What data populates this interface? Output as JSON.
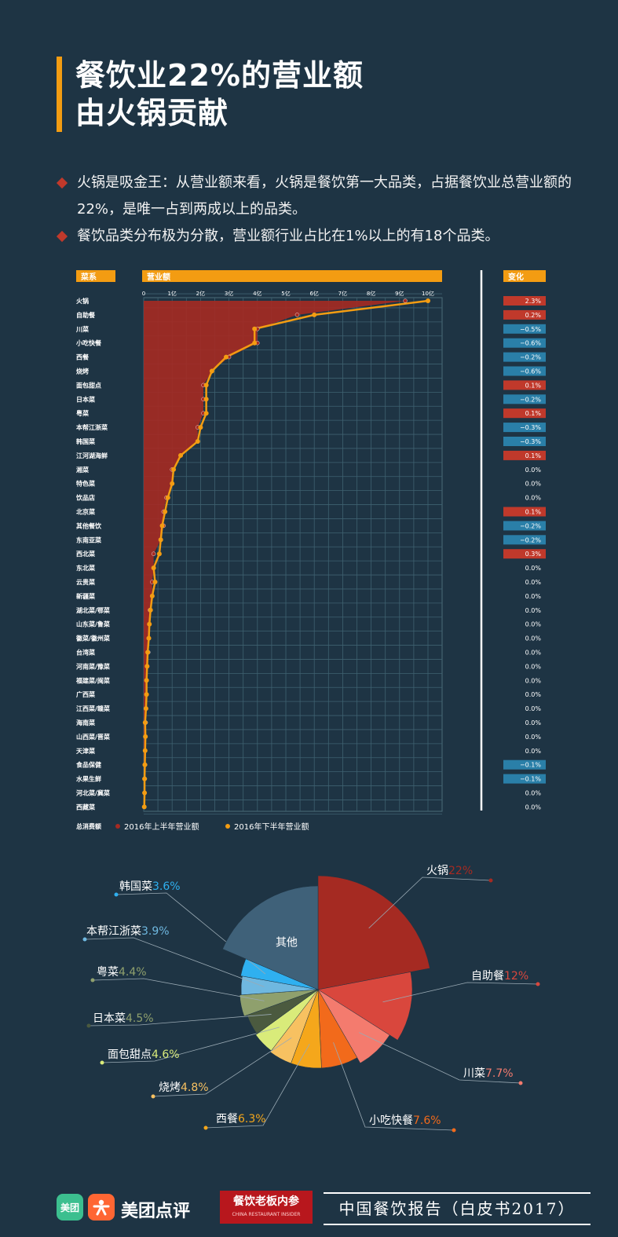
{
  "title": {
    "line1": "餐饮业22%的营业额",
    "line2": "由火锅贡献"
  },
  "bullets": [
    "火锅是吸金王：从营业额来看，火锅是餐饮第一大品类，占据餐饮业总营业额的22%，是唯一占到两成以上的品类。",
    "餐饮品类分布极为分散，营业额行业占比在1%以上的有18个品类。"
  ],
  "colors": {
    "accent": "#f39c12",
    "h1": "#a52a22",
    "h2": "#f39c12",
    "neg": "#2a7fa8",
    "pos": "#c0392b",
    "bg": "#1e3444"
  },
  "chart_data": [
    {
      "type": "line",
      "header_category": "菜系",
      "header_revenue": "营业额",
      "header_change": "变化",
      "x_ticks": [
        "0",
        "1亿",
        "2亿",
        "3亿",
        "4亿",
        "5亿",
        "6亿",
        "7亿",
        "8亿",
        "9亿",
        "10亿"
      ],
      "xlim": [
        0,
        10
      ],
      "legend_title": "总消费额",
      "legend": [
        "2016年上半年营业额",
        "2016年下半年营业额"
      ],
      "categories": [
        "火锅",
        "自助餐",
        "川菜",
        "小吃快餐",
        "西餐",
        "烧烤",
        "面包甜点",
        "日本菜",
        "粤菜",
        "本帮江浙菜",
        "韩国菜",
        "江河湖海鲜",
        "湘菜",
        "特色菜",
        "饮品店",
        "北京菜",
        "其他餐饮",
        "东南亚菜",
        "西北菜",
        "东北菜",
        "云贵菜",
        "新疆菜",
        "湖北菜/鄂菜",
        "山东菜/鲁菜",
        "徽菜/徽州菜",
        "台湾菜",
        "河南菜/豫菜",
        "福建菜/闽菜",
        "广西菜",
        "江西菜/赣菜",
        "海南菜",
        "山西菜/晋菜",
        "天津菜",
        "食品保健",
        "水果生鲜",
        "河北菜/冀菜",
        "西藏菜"
      ],
      "series": [
        {
          "name": "2016年上半年营业额",
          "values": [
            9.2,
            5.4,
            4.0,
            4.0,
            3.0,
            2.4,
            2.1,
            2.1,
            2.1,
            1.9,
            1.9,
            1.3,
            1.0,
            1.0,
            0.8,
            0.7,
            0.7,
            0.6,
            0.35,
            0.35,
            0.3,
            0.3,
            0.22,
            0.2,
            0.18,
            0.16,
            0.12,
            0.1,
            0.1,
            0.08,
            0.07,
            0.06,
            0.05,
            0.05,
            0.04,
            0.03,
            0.02
          ]
        },
        {
          "name": "2016年下半年营业额",
          "values": [
            10.0,
            6.0,
            3.9,
            3.9,
            2.9,
            2.4,
            2.2,
            2.2,
            2.2,
            2.0,
            1.9,
            1.3,
            1.05,
            1.0,
            0.85,
            0.75,
            0.65,
            0.6,
            0.55,
            0.35,
            0.4,
            0.3,
            0.24,
            0.2,
            0.18,
            0.14,
            0.12,
            0.1,
            0.1,
            0.08,
            0.05,
            0.06,
            0.05,
            0.04,
            0.03,
            0.03,
            0.02
          ]
        }
      ],
      "changes": [
        "2.3%",
        "0.2%",
        "-0.5%",
        "-0.6%",
        "-0.2%",
        "-0.6%",
        "0.1%",
        "-0.2%",
        "0.1%",
        "-0.3%",
        "-0.3%",
        "0.1%",
        "0.0%",
        "0.0%",
        "0.0%",
        "0.1%",
        "-0.2%",
        "-0.2%",
        "0.3%",
        "0.0%",
        "0.0%",
        "0.0%",
        "0.0%",
        "0.0%",
        "0.0%",
        "0.0%",
        "0.0%",
        "0.0%",
        "0.0%",
        "0.0%",
        "0.0%",
        "0.0%",
        "0.0%",
        "-0.1%",
        "-0.1%",
        "0.0%",
        "0.0%"
      ]
    },
    {
      "type": "pie",
      "center_label": "其他",
      "slices": [
        {
          "label": "火锅",
          "value": 22,
          "pct": "22%",
          "color": "#a52a22"
        },
        {
          "label": "自助餐",
          "value": 12,
          "pct": "12%",
          "color": "#d9473d"
        },
        {
          "label": "川菜",
          "value": 7.7,
          "pct": "7.7%",
          "color": "#f47b6e"
        },
        {
          "label": "小吃快餐",
          "value": 7.6,
          "pct": "7.6%",
          "color": "#f26a1b"
        },
        {
          "label": "西餐",
          "value": 6.3,
          "pct": "6.3%",
          "color": "#f5a71b"
        },
        {
          "label": "烧烤",
          "value": 4.8,
          "pct": "4.8%",
          "color": "#f7c161"
        },
        {
          "label": "面包甜点",
          "value": 4.6,
          "pct": "4.6%",
          "color": "#d9eb7a"
        },
        {
          "label": "日本菜",
          "value": 4.5,
          "pct": "4.5%",
          "color": "#4b5a3f"
        },
        {
          "label": "粤菜",
          "value": 4.4,
          "pct": "4.4%",
          "color": "#8fa06d"
        },
        {
          "label": "本帮江浙菜",
          "value": 3.9,
          "pct": "3.9%",
          "color": "#6fb8e0"
        },
        {
          "label": "韩国菜",
          "value": 3.6,
          "pct": "3.6%",
          "color": "#2fb0f0"
        },
        {
          "label": "其他",
          "value": 18.6,
          "pct": "",
          "color": "#3f6179"
        }
      ]
    }
  ],
  "footer": {
    "logo_mt": "美团",
    "brand": "美团点评",
    "pub_main": "餐饮老板内参",
    "pub_sub": "CHINA RESTAURANT INSIDER",
    "report": "中国餐饮报告（白皮书2017）"
  }
}
